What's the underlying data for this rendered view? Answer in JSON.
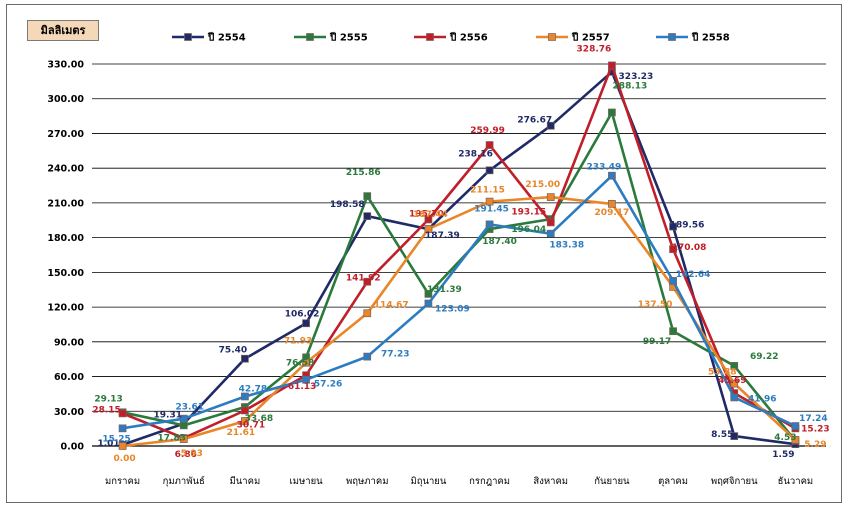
{
  "chart_data": {
    "type": "line",
    "ylabel": "มิลลิเมตร",
    "ylim": [
      0,
      330
    ],
    "yticks": [
      "0.00",
      "30.00",
      "60.00",
      "90.00",
      "120.00",
      "150.00",
      "180.00",
      "210.00",
      "240.00",
      "270.00",
      "300.00",
      "330.00"
    ],
    "grid": "horizontal",
    "legend_position": "top",
    "categories": [
      "มกราคม",
      "กุมภาพันธ์",
      "มีนาคม",
      "เมษายน",
      "พฤษภาคม",
      "มิถุนายน",
      "กรกฎาคม",
      "สิงหาคม",
      "กันยายน",
      "ตุลาคม",
      "พฤศจิกายน",
      "ธันวาคม"
    ],
    "series": [
      {
        "name": "ปี 2554",
        "color": "#1f2a66",
        "values": [
          1.01,
          19.31,
          75.4,
          106.02,
          198.58,
          187.39,
          238.16,
          276.67,
          323.23,
          189.56,
          8.55,
          1.59
        ]
      },
      {
        "name": "ปี 2555",
        "color": "#2a7a3c",
        "values": [
          29.13,
          17.83,
          33.68,
          76.58,
          215.86,
          131.39,
          187.4,
          196.04,
          288.13,
          99.17,
          69.22,
          4.53
        ]
      },
      {
        "name": "ปี 2556",
        "color": "#c01e28",
        "values": [
          28.15,
          6.86,
          30.71,
          61.13,
          141.92,
          195.7,
          259.99,
          193.15,
          328.76,
          170.08,
          45.69,
          15.23
        ]
      },
      {
        "name": "ปี 2557",
        "color": "#e8862a",
        "values": [
          0.0,
          5.93,
          21.61,
          71.93,
          114.67,
          187.44,
          211.15,
          215.0,
          209.17,
          137.5,
          53.88,
          5.29
        ]
      },
      {
        "name": "ปี 2558",
        "color": "#2c7cc2",
        "values": [
          15.25,
          23.61,
          42.78,
          57.26,
          77.23,
          123.09,
          191.45,
          183.38,
          233.49,
          142.64,
          41.96,
          17.24
        ]
      }
    ]
  }
}
